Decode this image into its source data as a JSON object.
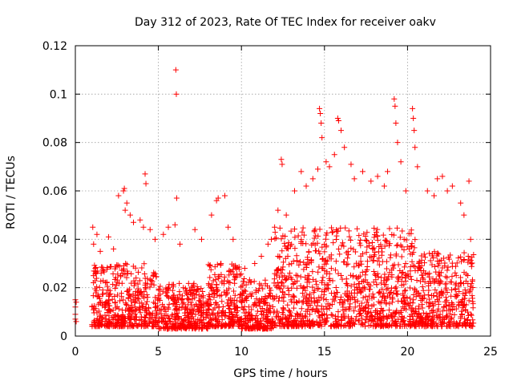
{
  "chart_data": {
    "type": "scatter",
    "title": "Day 312 of 2023, Rate Of TEC Index for receiver oakv",
    "xlabel": "GPS time / hours",
    "ylabel": "ROTI / TECUs",
    "xlim": [
      0,
      25
    ],
    "ylim": [
      0,
      0.12
    ],
    "x_ticks": [
      0,
      5,
      10,
      15,
      20,
      25
    ],
    "x_tick_labels": [
      "0",
      "5",
      "10",
      "15",
      "20",
      "25"
    ],
    "y_ticks": [
      0,
      0.02,
      0.04,
      0.06,
      0.08,
      0.1,
      0.12
    ],
    "y_tick_labels": [
      "0",
      "0.02",
      "0.04",
      "0.06",
      "0.08",
      "0.1",
      "0.12"
    ],
    "grid": true,
    "marker": "+",
    "series": [
      {
        "name": "ROTI",
        "color": "#ff0000",
        "points": [
          [
            0.0,
            0.015
          ],
          [
            0.0,
            0.012
          ],
          [
            0.0,
            0.009
          ],
          [
            0.0,
            0.007
          ],
          [
            0.05,
            0.014
          ],
          [
            0.05,
            0.006
          ],
          [
            1.05,
            0.045
          ],
          [
            1.1,
            0.038
          ],
          [
            1.2,
            0.028
          ],
          [
            1.3,
            0.042
          ],
          [
            1.5,
            0.035
          ],
          [
            2.0,
            0.041
          ],
          [
            2.3,
            0.036
          ],
          [
            2.6,
            0.058
          ],
          [
            2.9,
            0.06
          ],
          [
            2.95,
            0.061
          ],
          [
            3.0,
            0.052
          ],
          [
            3.1,
            0.055
          ],
          [
            3.3,
            0.05
          ],
          [
            3.5,
            0.047
          ],
          [
            3.9,
            0.048
          ],
          [
            4.1,
            0.045
          ],
          [
            4.2,
            0.067
          ],
          [
            4.25,
            0.063
          ],
          [
            4.5,
            0.044
          ],
          [
            4.8,
            0.04
          ],
          [
            5.3,
            0.042
          ],
          [
            5.6,
            0.045
          ],
          [
            6.0,
            0.046
          ],
          [
            6.05,
            0.11
          ],
          [
            6.08,
            0.1
          ],
          [
            6.1,
            0.057
          ],
          [
            6.3,
            0.038
          ],
          [
            7.2,
            0.044
          ],
          [
            7.6,
            0.04
          ],
          [
            8.2,
            0.05
          ],
          [
            8.5,
            0.056
          ],
          [
            8.6,
            0.057
          ],
          [
            9.0,
            0.058
          ],
          [
            9.2,
            0.045
          ],
          [
            9.5,
            0.04
          ],
          [
            10.2,
            0.028
          ],
          [
            10.8,
            0.03
          ],
          [
            11.2,
            0.033
          ],
          [
            11.6,
            0.038
          ],
          [
            11.8,
            0.04
          ],
          [
            12.0,
            0.045
          ],
          [
            12.2,
            0.052
          ],
          [
            12.4,
            0.073
          ],
          [
            12.45,
            0.071
          ],
          [
            12.7,
            0.05
          ],
          [
            13.2,
            0.06
          ],
          [
            13.6,
            0.068
          ],
          [
            13.9,
            0.062
          ],
          [
            14.3,
            0.065
          ],
          [
            14.6,
            0.069
          ],
          [
            14.7,
            0.094
          ],
          [
            14.75,
            0.092
          ],
          [
            14.8,
            0.088
          ],
          [
            14.85,
            0.082
          ],
          [
            15.1,
            0.072
          ],
          [
            15.3,
            0.07
          ],
          [
            15.6,
            0.075
          ],
          [
            15.8,
            0.09
          ],
          [
            15.85,
            0.089
          ],
          [
            16.0,
            0.085
          ],
          [
            16.2,
            0.078
          ],
          [
            16.6,
            0.071
          ],
          [
            16.8,
            0.065
          ],
          [
            17.3,
            0.068
          ],
          [
            17.8,
            0.064
          ],
          [
            18.2,
            0.066
          ],
          [
            18.6,
            0.062
          ],
          [
            18.8,
            0.068
          ],
          [
            19.2,
            0.098
          ],
          [
            19.25,
            0.095
          ],
          [
            19.3,
            0.088
          ],
          [
            19.4,
            0.08
          ],
          [
            19.6,
            0.072
          ],
          [
            19.9,
            0.06
          ],
          [
            20.3,
            0.094
          ],
          [
            20.35,
            0.09
          ],
          [
            20.4,
            0.085
          ],
          [
            20.45,
            0.078
          ],
          [
            20.6,
            0.07
          ],
          [
            21.2,
            0.06
          ],
          [
            21.6,
            0.058
          ],
          [
            21.8,
            0.065
          ],
          [
            22.1,
            0.066
          ],
          [
            22.4,
            0.06
          ],
          [
            22.7,
            0.062
          ],
          [
            23.2,
            0.055
          ],
          [
            23.4,
            0.05
          ],
          [
            23.7,
            0.064
          ],
          [
            23.8,
            0.04
          ]
        ],
        "dense_band": {
          "note": "Dense cloud of additional points representing the bulk of the measurements",
          "x_range": [
            1.0,
            24.0
          ],
          "bands": [
            {
              "x0": 1.0,
              "x1": 5.0,
              "low": 0.004,
              "high": 0.03
            },
            {
              "x0": 5.0,
              "x1": 8.0,
              "low": 0.003,
              "high": 0.022
            },
            {
              "x0": 8.0,
              "x1": 10.0,
              "low": 0.004,
              "high": 0.03
            },
            {
              "x0": 10.0,
              "x1": 12.0,
              "low": 0.003,
              "high": 0.024
            },
            {
              "x0": 12.0,
              "x1": 20.5,
              "low": 0.004,
              "high": 0.045
            },
            {
              "x0": 20.5,
              "x1": 24.0,
              "low": 0.004,
              "high": 0.035
            }
          ],
          "count": 2600
        }
      }
    ]
  }
}
